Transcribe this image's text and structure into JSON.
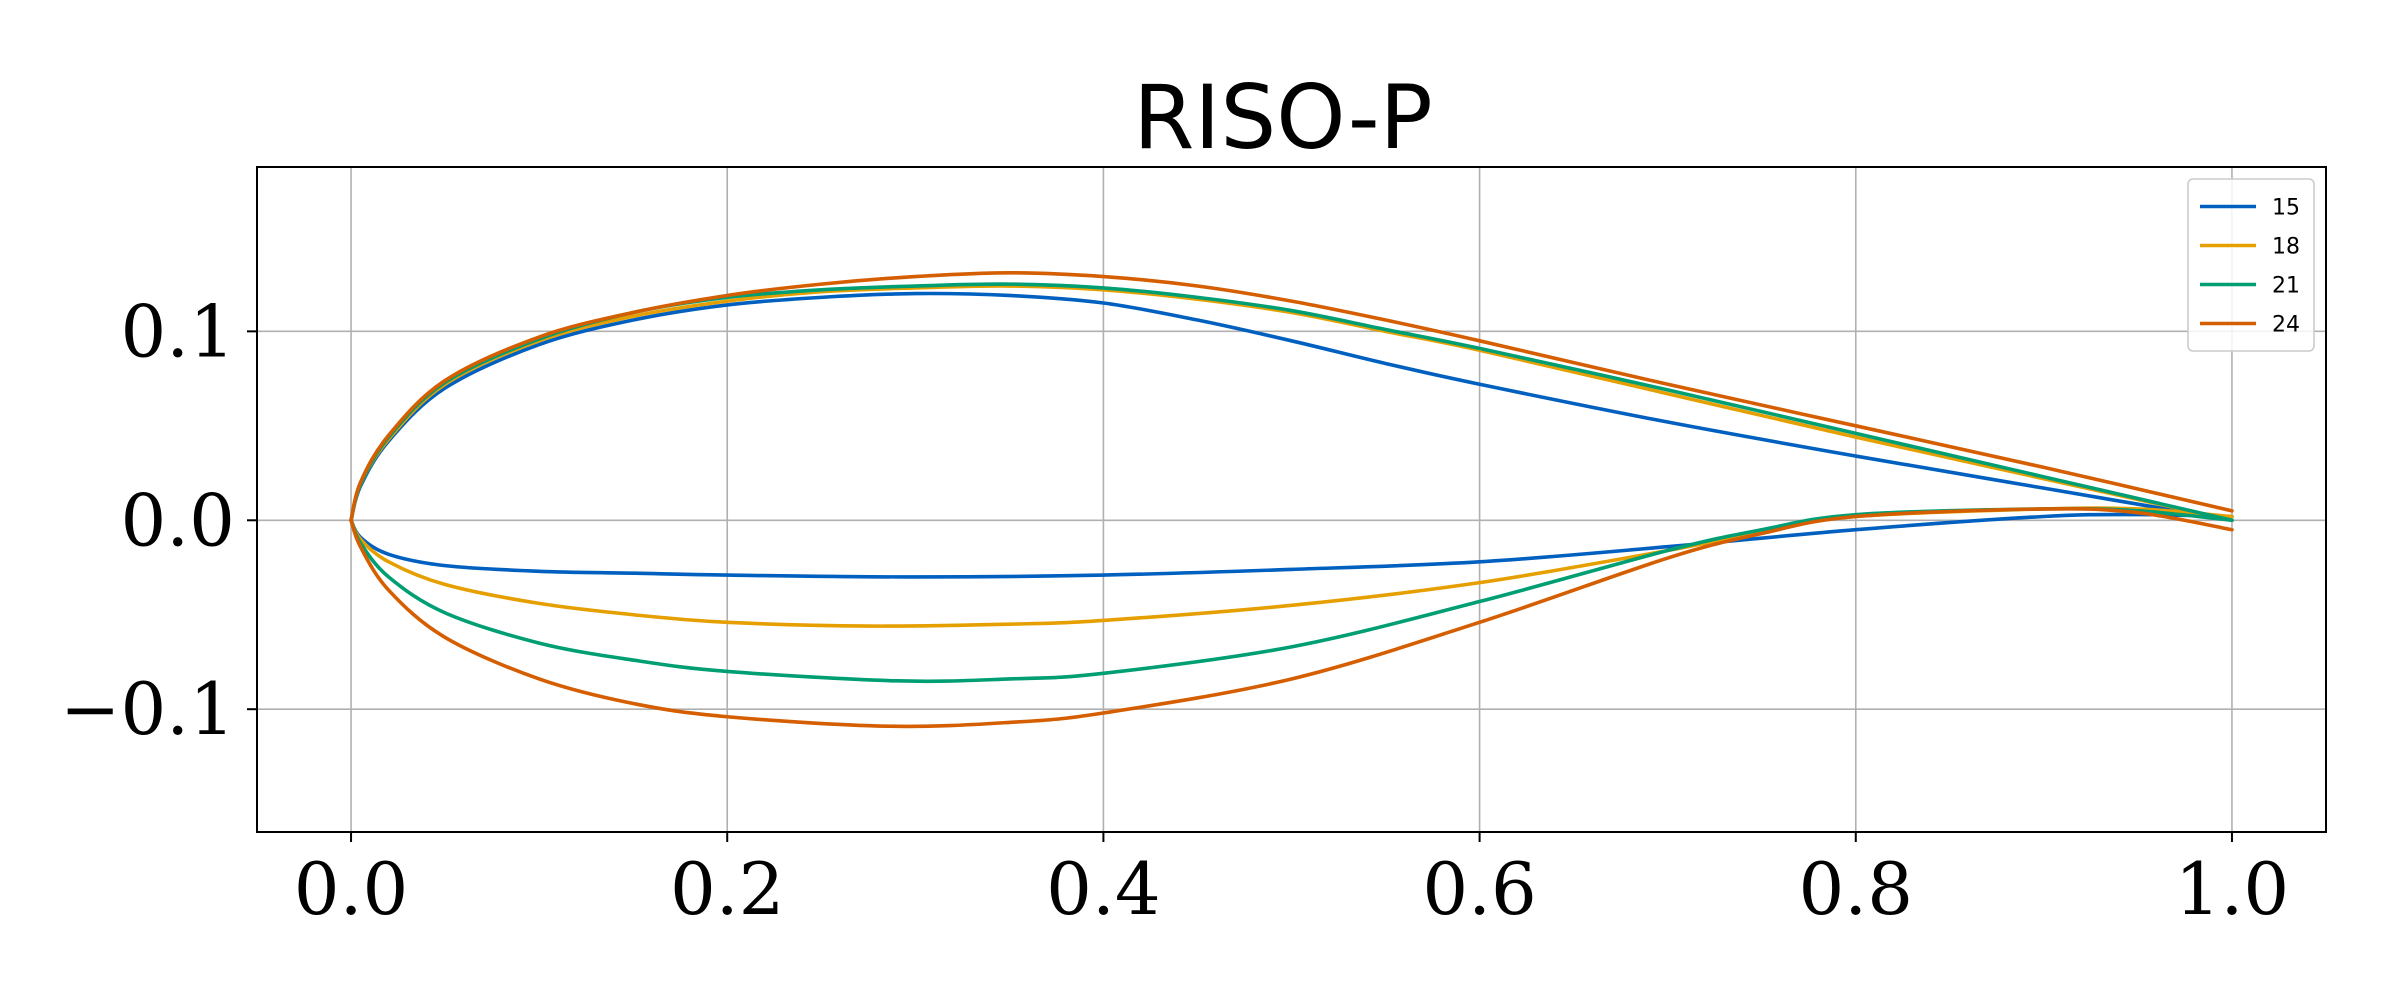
{
  "chart_data": {
    "type": "line",
    "title": "RISO-P",
    "xlabel": "",
    "ylabel": "",
    "xlim": [
      -0.05,
      1.05
    ],
    "ylim": [
      -0.165,
      0.187
    ],
    "x_ticks": [
      0.0,
      0.2,
      0.4,
      0.6,
      0.8,
      1.0
    ],
    "x_tick_labels": [
      "0.0",
      "0.2",
      "0.4",
      "0.6",
      "0.8",
      "1.0"
    ],
    "y_ticks": [
      -0.1,
      0.0,
      0.1
    ],
    "y_tick_labels": [
      "−0.1",
      "0.0",
      "0.1"
    ],
    "grid": true,
    "legend_position": "top-right",
    "series": [
      {
        "name": "15",
        "color": "#0060c0",
        "upper": {
          "x": [
            0.0,
            0.005,
            0.02,
            0.05,
            0.1,
            0.15,
            0.2,
            0.25,
            0.3,
            0.35,
            0.4,
            0.45,
            0.5,
            0.55,
            0.6,
            0.7,
            0.8,
            0.9,
            1.0
          ],
          "y": [
            0.0,
            0.018,
            0.042,
            0.07,
            0.093,
            0.106,
            0.114,
            0.118,
            0.12,
            0.119,
            0.115,
            0.106,
            0.095,
            0.083,
            0.072,
            0.052,
            0.034,
            0.017,
            0.0
          ]
        },
        "lower": {
          "x": [
            0.0,
            0.005,
            0.02,
            0.05,
            0.1,
            0.15,
            0.2,
            0.3,
            0.4,
            0.5,
            0.6,
            0.7,
            0.8,
            0.9,
            0.95,
            1.0
          ],
          "y": [
            0.0,
            -0.009,
            -0.018,
            -0.024,
            -0.027,
            -0.028,
            -0.029,
            -0.03,
            -0.029,
            -0.026,
            -0.022,
            -0.014,
            -0.005,
            0.002,
            0.003,
            0.002
          ]
        }
      },
      {
        "name": "18",
        "color": "#e69f00",
        "upper": {
          "x": [
            0.0,
            0.005,
            0.02,
            0.05,
            0.1,
            0.15,
            0.2,
            0.25,
            0.3,
            0.35,
            0.4,
            0.45,
            0.5,
            0.55,
            0.6,
            0.7,
            0.8,
            0.9,
            1.0
          ],
          "y": [
            0.0,
            0.019,
            0.043,
            0.072,
            0.095,
            0.108,
            0.116,
            0.121,
            0.123,
            0.124,
            0.122,
            0.117,
            0.11,
            0.1,
            0.09,
            0.067,
            0.044,
            0.022,
            0.0
          ]
        },
        "lower": {
          "x": [
            0.0,
            0.005,
            0.02,
            0.05,
            0.1,
            0.15,
            0.2,
            0.275,
            0.35,
            0.4,
            0.5,
            0.6,
            0.7,
            0.75,
            0.8,
            0.9,
            0.95,
            1.0
          ],
          "y": [
            0.0,
            -0.01,
            -0.022,
            -0.034,
            -0.044,
            -0.05,
            -0.054,
            -0.056,
            -0.055,
            -0.053,
            -0.045,
            -0.033,
            -0.016,
            -0.006,
            0.002,
            0.006,
            0.006,
            0.002
          ]
        }
      },
      {
        "name": "21",
        "color": "#009e73",
        "upper": {
          "x": [
            0.0,
            0.005,
            0.02,
            0.05,
            0.1,
            0.15,
            0.2,
            0.25,
            0.3,
            0.35,
            0.4,
            0.45,
            0.5,
            0.55,
            0.6,
            0.7,
            0.8,
            0.9,
            1.0
          ],
          "y": [
            0.0,
            0.019,
            0.044,
            0.073,
            0.096,
            0.11,
            0.118,
            0.122,
            0.124,
            0.125,
            0.123,
            0.118,
            0.111,
            0.101,
            0.091,
            0.069,
            0.046,
            0.023,
            0.0
          ]
        },
        "lower": {
          "x": [
            0.0,
            0.005,
            0.02,
            0.05,
            0.1,
            0.15,
            0.2,
            0.29,
            0.35,
            0.4,
            0.5,
            0.6,
            0.7,
            0.75,
            0.8,
            0.9,
            0.95,
            1.0
          ],
          "y": [
            0.0,
            -0.012,
            -0.03,
            -0.049,
            -0.065,
            -0.074,
            -0.08,
            -0.085,
            -0.084,
            -0.081,
            -0.067,
            -0.043,
            -0.016,
            -0.005,
            0.003,
            0.006,
            0.005,
            0.0
          ]
        }
      },
      {
        "name": "24",
        "color": "#d55e00",
        "upper": {
          "x": [
            0.0,
            0.005,
            0.02,
            0.05,
            0.1,
            0.15,
            0.2,
            0.25,
            0.3,
            0.35,
            0.4,
            0.45,
            0.5,
            0.55,
            0.6,
            0.7,
            0.8,
            0.9,
            1.0
          ],
          "y": [
            0.0,
            0.02,
            0.045,
            0.074,
            0.097,
            0.11,
            0.119,
            0.125,
            0.129,
            0.131,
            0.129,
            0.124,
            0.116,
            0.106,
            0.095,
            0.072,
            0.05,
            0.028,
            0.005
          ]
        },
        "lower": {
          "x": [
            0.0,
            0.005,
            0.02,
            0.05,
            0.1,
            0.15,
            0.2,
            0.285,
            0.35,
            0.4,
            0.5,
            0.6,
            0.7,
            0.75,
            0.8,
            0.9,
            0.95,
            1.0
          ],
          "y": [
            0.0,
            -0.014,
            -0.037,
            -0.062,
            -0.084,
            -0.097,
            -0.104,
            -0.109,
            -0.107,
            -0.102,
            -0.084,
            -0.054,
            -0.02,
            -0.007,
            0.002,
            0.006,
            0.004,
            -0.005
          ]
        }
      }
    ]
  }
}
